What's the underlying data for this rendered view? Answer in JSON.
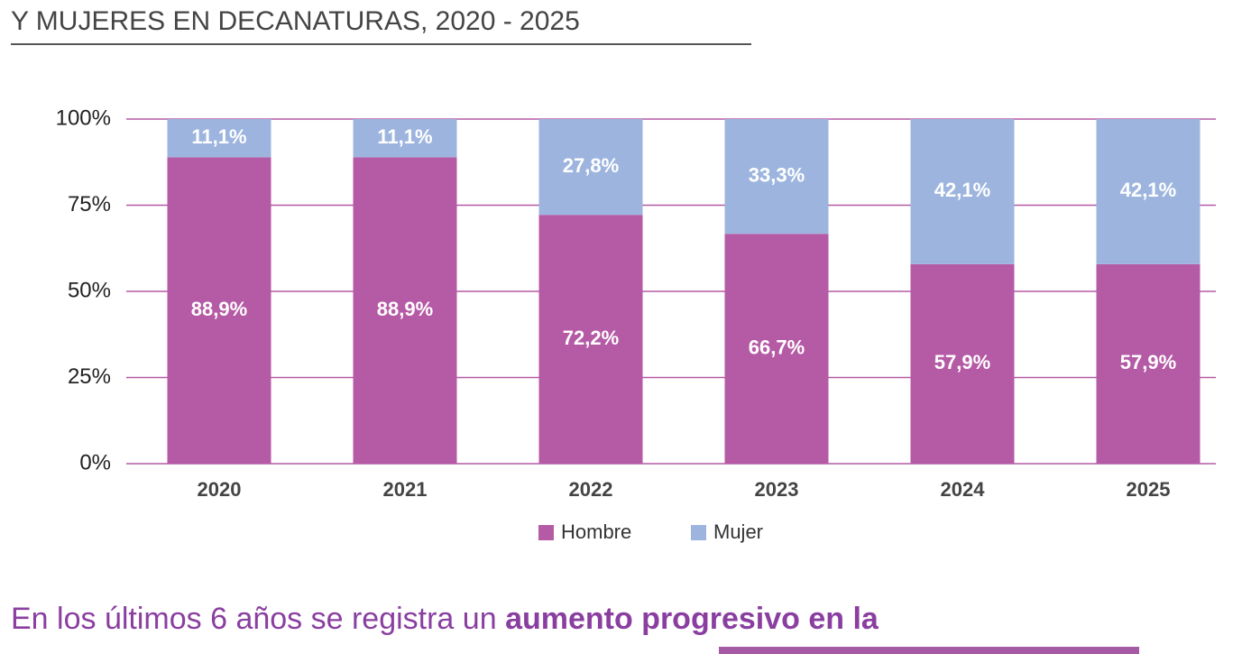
{
  "header": {
    "title": "Y MUJERES EN DECANATURAS, 2020 - 2025"
  },
  "chart_data": {
    "type": "stacked_bar",
    "categories": [
      "2020",
      "2021",
      "2022",
      "2023",
      "2024",
      "2025"
    ],
    "series": [
      {
        "name": "Hombre",
        "color": "#b55aa5",
        "values": [
          88.9,
          88.9,
          72.2,
          66.7,
          57.9,
          57.9
        ],
        "value_labels": [
          "88,9%",
          "88,9%",
          "72,2%",
          "66,7%",
          "57,9%",
          "57,9%"
        ]
      },
      {
        "name": "Mujer",
        "color": "#9db5de",
        "values": [
          11.1,
          11.1,
          27.8,
          33.3,
          42.1,
          42.1
        ],
        "value_labels": [
          "11,1%",
          "11,1%",
          "27,8%",
          "33,3%",
          "42,1%",
          "42,1%"
        ]
      }
    ],
    "ylim": [
      0,
      100
    ],
    "yticks": [
      {
        "value": 0,
        "label": "0%"
      },
      {
        "value": 25,
        "label": "25%"
      },
      {
        "value": 50,
        "label": "50%"
      },
      {
        "value": 75,
        "label": "75%"
      },
      {
        "value": 100,
        "label": "100%"
      }
    ],
    "grid": true,
    "grid_color": "#b55aa5",
    "legend": "bottom"
  },
  "paragraph": {
    "text": "En los últimos 6 años se registra un ",
    "bold": "aumento progresivo en la"
  }
}
